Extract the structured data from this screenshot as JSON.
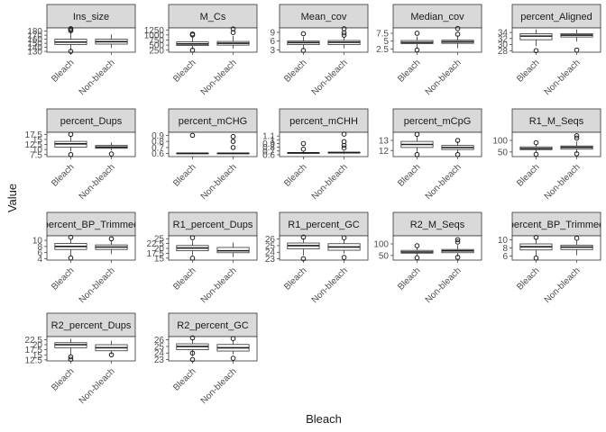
{
  "chart_data": {
    "type": "boxplot-facets",
    "xlabel": "Bleach",
    "ylabel": "Value",
    "categories": [
      "Bleach",
      "Non-bleach"
    ],
    "panels": [
      {
        "title": "Ins_size",
        "ylim": [
          128,
          188
        ],
        "ticks": [
          130,
          140,
          150,
          160,
          170,
          180
        ],
        "boxes": [
          {
            "whisker_low": 132,
            "q1": 147,
            "median": 153,
            "q3": 160,
            "whisker_high": 178,
            "outliers": [
              130,
              181,
              184,
              186
            ]
          },
          {
            "whisker_low": 138,
            "q1": 148,
            "median": 154,
            "q3": 160,
            "whisker_high": 172,
            "outliers": []
          }
        ]
      },
      {
        "title": "M_Cs",
        "ylim": [
          150,
          1350
        ],
        "ticks": [
          250,
          500,
          750,
          1000,
          1250
        ],
        "boxes": [
          {
            "whisker_low": 300,
            "q1": 480,
            "median": 560,
            "q3": 660,
            "whisker_high": 900,
            "outliers": [
              250,
              1000,
              1050
            ]
          },
          {
            "whisker_low": 330,
            "q1": 500,
            "median": 590,
            "q3": 680,
            "whisker_high": 950,
            "outliers": [
              1120,
              1300
            ]
          }
        ]
      },
      {
        "title": "Mean_cov",
        "ylim": [
          2.2,
          10.5
        ],
        "ticks": [
          3,
          6,
          9
        ],
        "boxes": [
          {
            "whisker_low": 3.2,
            "q1": 4.8,
            "median": 5.5,
            "q3": 6.0,
            "whisker_high": 7.5,
            "outliers": [
              2.8,
              8.5
            ]
          },
          {
            "whisker_low": 3.5,
            "q1": 4.8,
            "median": 5.6,
            "q3": 6.2,
            "whisker_high": 7.5,
            "outliers": [
              8.0,
              8.8,
              10.2
            ]
          }
        ]
      },
      {
        "title": "Median_cov",
        "ylim": [
          1.5,
          9.2
        ],
        "ticks": [
          2.5,
          5.0,
          7.5
        ],
        "boxes": [
          {
            "whisker_low": 2.5,
            "q1": 4.2,
            "median": 4.6,
            "q3": 5.2,
            "whisker_high": 6.5,
            "outliers": [
              2.2,
              7.5
            ]
          },
          {
            "whisker_low": 2.8,
            "q1": 4.3,
            "median": 4.8,
            "q3": 5.3,
            "whisker_high": 6.8,
            "outliers": [
              7.2,
              9.0
            ]
          }
        ]
      },
      {
        "title": "percent_Aligned",
        "ylim": [
          27.5,
          35.5
        ],
        "ticks": [
          28,
          30,
          32,
          34
        ],
        "boxes": [
          {
            "whisker_low": 29.5,
            "q1": 31.6,
            "median": 32.8,
            "q3": 33.6,
            "whisker_high": 35.0,
            "outliers": [
              28.0
            ]
          },
          {
            "whisker_low": 31.0,
            "q1": 32.5,
            "median": 33.1,
            "q3": 33.6,
            "whisker_high": 35.0,
            "outliers": [
              28.2
            ]
          }
        ]
      },
      {
        "title": "percent_Dups",
        "ylim": [
          6.5,
          18.5
        ],
        "ticks": [
          7.5,
          10.0,
          12.5,
          15.0,
          17.5
        ],
        "boxes": [
          {
            "whisker_low": 9.0,
            "q1": 11.2,
            "median": 12.8,
            "q3": 14.0,
            "whisker_high": 16.5,
            "outliers": [
              7.5,
              17.5
            ]
          },
          {
            "whisker_low": 9.5,
            "q1": 10.6,
            "median": 11.2,
            "q3": 12.0,
            "whisker_high": 13.5,
            "outliers": [
              7.8
            ]
          }
        ]
      },
      {
        "title": "percent_mCHG",
        "ylim": [
          0.55,
          0.95
        ],
        "ticks": [
          0.6,
          0.7,
          0.8,
          0.9
        ],
        "boxes": [
          {
            "whisker_low": 0.59,
            "q1": 0.6,
            "median": 0.605,
            "q3": 0.61,
            "whisker_high": 0.62,
            "outliers": [
              0.9
            ]
          },
          {
            "whisker_low": 0.59,
            "q1": 0.6,
            "median": 0.605,
            "q3": 0.61,
            "whisker_high": 0.62,
            "outliers": [
              0.7,
              0.8,
              0.88
            ]
          }
        ]
      },
      {
        "title": "percent_mCHH",
        "ylim": [
          0.55,
          1.2
        ],
        "ticks": [
          0.6,
          0.7,
          0.8,
          0.9,
          1.0,
          1.1
        ],
        "boxes": [
          {
            "whisker_low": 0.62,
            "q1": 0.64,
            "median": 0.65,
            "q3": 0.66,
            "whisker_high": 0.7,
            "outliers": [
              0.75,
              0.9
            ]
          },
          {
            "whisker_low": 0.62,
            "q1": 0.645,
            "median": 0.655,
            "q3": 0.67,
            "whisker_high": 0.7,
            "outliers": [
              0.78,
              0.85,
              0.95,
              1.15
            ]
          }
        ]
      },
      {
        "title": "percent_mCpG",
        "ylim": [
          11.4,
          13.8
        ],
        "ticks": [
          12,
          13
        ],
        "boxes": [
          {
            "whisker_low": 11.8,
            "q1": 12.3,
            "median": 12.6,
            "q3": 12.9,
            "whisker_high": 13.4,
            "outliers": [
              11.6,
              13.6
            ]
          },
          {
            "whisker_low": 11.8,
            "q1": 12.1,
            "median": 12.3,
            "q3": 12.5,
            "whisker_high": 12.9,
            "outliers": [
              11.6,
              13.0
            ]
          }
        ]
      },
      {
        "title": "R1_M_Seqs",
        "ylim": [
          30,
          135
        ],
        "ticks": [
          50,
          100
        ],
        "boxes": [
          {
            "whisker_low": 50,
            "q1": 60,
            "median": 65,
            "q3": 72,
            "whisker_high": 85,
            "outliers": [
              40,
              90
            ]
          },
          {
            "whisker_low": 45,
            "q1": 62,
            "median": 70,
            "q3": 76,
            "whisker_high": 95,
            "outliers": [
              42,
              110,
              120
            ]
          }
        ]
      },
      {
        "title": "percent_BP_Trimmed",
        "ylim": [
          3.5,
          11.5
        ],
        "ticks": [
          4,
          6,
          8,
          10
        ],
        "boxes": [
          {
            "whisker_low": 5.0,
            "q1": 7.0,
            "median": 8.0,
            "q3": 9.0,
            "whisker_high": 10.5,
            "outliers": [
              4.2,
              11.0
            ]
          },
          {
            "whisker_low": 5.5,
            "q1": 7.0,
            "median": 7.8,
            "q3": 8.5,
            "whisker_high": 10.0,
            "outliers": [
              10.5
            ]
          }
        ]
      },
      {
        "title": "R1_percent_Dups",
        "ylim": [
          14,
          26.5
        ],
        "ticks": [
          15.0,
          17.5,
          20.0,
          22.5,
          25.0
        ],
        "boxes": [
          {
            "whisker_low": 16.5,
            "q1": 18.8,
            "median": 20.2,
            "q3": 21.5,
            "whisker_high": 24.0,
            "outliers": [
              15.0,
              25.5
            ]
          },
          {
            "whisker_low": 15.5,
            "q1": 17.8,
            "median": 18.8,
            "q3": 20.5,
            "whisker_high": 23.0,
            "outliers": []
          }
        ]
      },
      {
        "title": "R1_percent_GC",
        "ylim": [
          22.8,
          26.5
        ],
        "ticks": [
          23,
          24,
          25,
          26
        ],
        "boxes": [
          {
            "whisker_low": 23.5,
            "q1": 24.5,
            "median": 25.0,
            "q3": 25.4,
            "whisker_high": 26.1,
            "outliers": [
              23.0,
              26.3
            ]
          },
          {
            "whisker_low": 23.8,
            "q1": 24.3,
            "median": 24.8,
            "q3": 25.3,
            "whisker_high": 26.0,
            "outliers": [
              23.2,
              26.2
            ]
          }
        ]
      },
      {
        "title": "R2_M_Seqs",
        "ylim": [
          30,
          135
        ],
        "ticks": [
          50,
          100
        ],
        "boxes": [
          {
            "whisker_low": 50,
            "q1": 60,
            "median": 65,
            "q3": 72,
            "whisker_high": 85,
            "outliers": [
              40,
              92
            ]
          },
          {
            "whisker_low": 45,
            "q1": 62,
            "median": 70,
            "q3": 76,
            "whisker_high": 95,
            "outliers": [
              42,
              108,
              118
            ]
          }
        ]
      },
      {
        "title": "percent_BP_Trimmed",
        "ylim": [
          5,
          11
        ],
        "ticks": [
          6,
          8,
          10
        ],
        "boxes": [
          {
            "whisker_low": 6.0,
            "q1": 7.5,
            "median": 8.3,
            "q3": 9.0,
            "whisker_high": 10.3,
            "outliers": [
              5.5,
              10.6
            ]
          },
          {
            "whisker_low": 6.2,
            "q1": 7.6,
            "median": 8.2,
            "q3": 8.7,
            "whisker_high": 10.0,
            "outliers": [
              10.4
            ]
          }
        ]
      },
      {
        "title": "R2_percent_Dups",
        "ylim": [
          12,
          24
        ],
        "ticks": [
          12.5,
          15.0,
          17.5,
          20.0,
          22.5
        ],
        "boxes": [
          {
            "whisker_low": 15.0,
            "q1": 18.5,
            "median": 20.0,
            "q3": 21.0,
            "whisker_high": 23.0,
            "outliers": [
              12.8,
              14.0
            ]
          },
          {
            "whisker_low": 15.2,
            "q1": 17.0,
            "median": 18.5,
            "q3": 20.0,
            "whisker_high": 22.0,
            "outliers": [
              15.0
            ]
          }
        ]
      },
      {
        "title": "R2_percent_GC",
        "ylim": [
          22.8,
          26.5
        ],
        "ticks": [
          23,
          24,
          25,
          26
        ],
        "boxes": [
          {
            "whisker_low": 23.5,
            "q1": 24.5,
            "median": 25.0,
            "q3": 25.4,
            "whisker_high": 26.1,
            "outliers": [
              23.0,
              24.0,
              26.3
            ]
          },
          {
            "whisker_low": 23.8,
            "q1": 24.3,
            "median": 24.8,
            "q3": 25.3,
            "whisker_high": 26.0,
            "outliers": [
              23.2,
              26.2
            ]
          }
        ]
      }
    ]
  }
}
